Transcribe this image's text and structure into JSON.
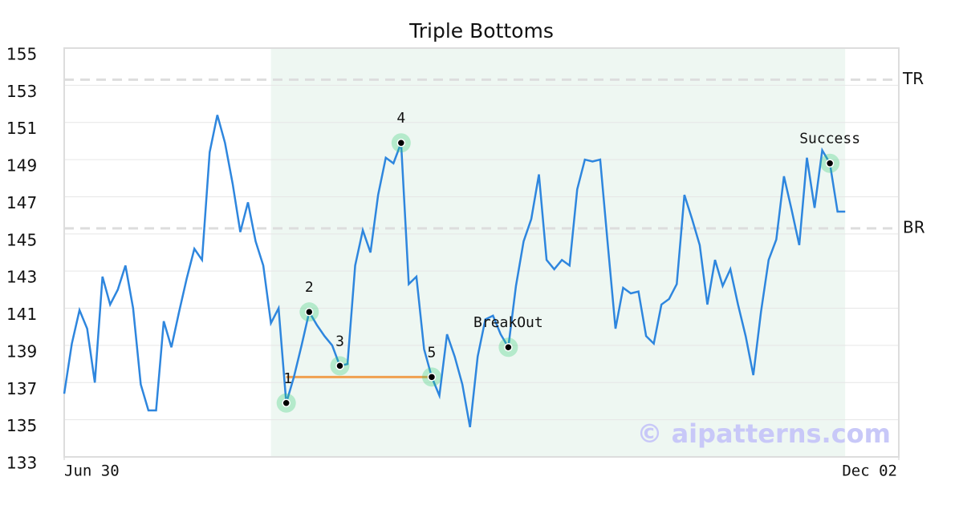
{
  "chart_data": {
    "type": "line",
    "title": "Triple Bottoms",
    "x": [
      0,
      1,
      2,
      3,
      4,
      5,
      6,
      7,
      8,
      9,
      10,
      11,
      12,
      13,
      14,
      15,
      16,
      17,
      18,
      19,
      20,
      21,
      22,
      23,
      24,
      25,
      26,
      27,
      28,
      29,
      30,
      31,
      32,
      33,
      34,
      35,
      36,
      37,
      38,
      39,
      40,
      41,
      42,
      43,
      44,
      45,
      46,
      47,
      48,
      49,
      50,
      51,
      52,
      53,
      54,
      55,
      56,
      57,
      58,
      59,
      60,
      61,
      62,
      63,
      64,
      65,
      66,
      67,
      68,
      69,
      70,
      71,
      72,
      73,
      74,
      75,
      76,
      77,
      78,
      79,
      80,
      81,
      82,
      83,
      84,
      85,
      86,
      87,
      88,
      89,
      90,
      91,
      92,
      93,
      94,
      95,
      96,
      97,
      98,
      99,
      100,
      101,
      102
    ],
    "series": [
      {
        "color": "#2e86de",
        "values": [
          136.4,
          139.1,
          140.9,
          139.9,
          137.0,
          142.7,
          141.2,
          142.0,
          143.3,
          141.0,
          136.9,
          135.5,
          135.5,
          140.3,
          138.9,
          140.8,
          142.6,
          144.2,
          143.6,
          149.4,
          151.4,
          149.9,
          147.7,
          145.1,
          146.7,
          144.6,
          143.3,
          140.2,
          141.0,
          135.9,
          137.3,
          139.0,
          140.8,
          140.1,
          139.5,
          139.0,
          137.9,
          138.0,
          143.3,
          145.2,
          144.0,
          147.1,
          149.1,
          148.8,
          149.9,
          142.3,
          142.7,
          138.8,
          137.3,
          136.3,
          139.6,
          138.4,
          136.9,
          134.6,
          138.4,
          140.4,
          140.6,
          139.6,
          138.9,
          142.2,
          144.6,
          145.8,
          148.2,
          143.6,
          143.1,
          143.6,
          143.3,
          147.4,
          149.0,
          148.9,
          149.0,
          144.4,
          139.9,
          142.1,
          141.8,
          141.9,
          139.5,
          139.1,
          141.2,
          141.5,
          142.3,
          147.1,
          145.8,
          144.4,
          141.2,
          143.6,
          142.2,
          143.1,
          141.2,
          139.5,
          137.4,
          140.8,
          143.6,
          144.7,
          148.1,
          146.3,
          144.4,
          149.1,
          146.4,
          149.5,
          148.8,
          146.2,
          146.2
        ]
      }
    ],
    "xlim": [
      0,
      109
    ],
    "xticks": [
      {
        "value": 0,
        "label": "Jun 30"
      },
      {
        "value": 109,
        "label": "Dec 02"
      }
    ],
    "ylim": [
      133,
      155
    ],
    "yticks": [
      133,
      135,
      137,
      139,
      141,
      143,
      145,
      147,
      149,
      151,
      153,
      155
    ],
    "grid": true,
    "shade_x": [
      27,
      102
    ],
    "shade_color": "#eef7f2",
    "reference_lines": [
      {
        "label": "TR",
        "y": 153.3
      },
      {
        "label": "BR",
        "y": 145.3
      }
    ],
    "support_line": {
      "x": [
        29,
        48
      ],
      "y": 137.3,
      "color": "#f0a050"
    },
    "annotations": [
      {
        "label": "1",
        "x": 29,
        "y": 135.9
      },
      {
        "label": "2",
        "x": 32,
        "y": 140.8
      },
      {
        "label": "3",
        "x": 36,
        "y": 137.9
      },
      {
        "label": "4",
        "x": 44,
        "y": 149.9
      },
      {
        "label": "5",
        "x": 48,
        "y": 137.3
      },
      {
        "label": "BreakOut",
        "x": 58,
        "y": 138.9
      },
      {
        "label": "Success",
        "x": 100,
        "y": 148.8
      }
    ],
    "watermark": "© aipatterns.com"
  }
}
